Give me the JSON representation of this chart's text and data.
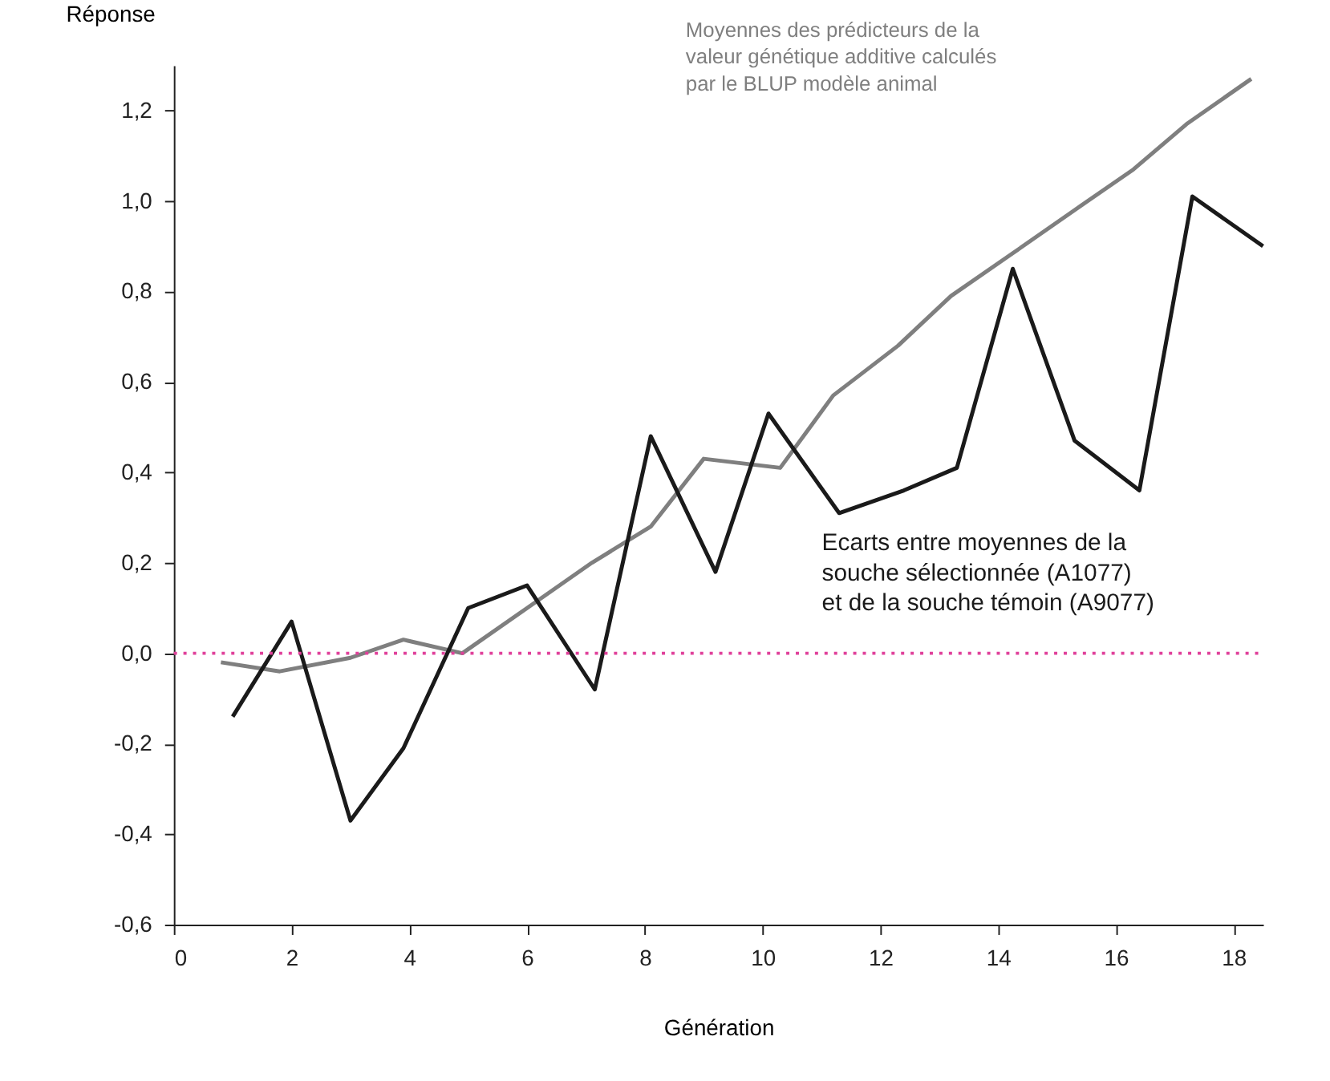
{
  "chart_data": {
    "type": "line",
    "xlabel": "Génération",
    "ylabel": "Réponse",
    "series": [
      {
        "name": "Moyennes des prédicteurs de la\nvaleur génétique additive calculés\npar le BLUP modèle animal",
        "color": "#7f7f7f",
        "x": [
          0.8,
          1.8,
          3.0,
          3.9,
          4.9,
          6.0,
          7.1,
          8.1,
          9.0,
          10.3,
          11.2,
          12.3,
          13.2,
          14.2,
          15.3,
          16.3,
          17.2,
          18.3
        ],
        "values": [
          -0.02,
          -0.04,
          -0.01,
          0.03,
          0.0,
          0.1,
          0.2,
          0.28,
          0.43,
          0.41,
          0.57,
          0.68,
          0.79,
          0.88,
          0.98,
          1.07,
          1.17,
          1.27
        ]
      },
      {
        "name": "Ecarts entre moyennes de la\nsouche sélectionnée (A1077)\net de la souche témoin (A9077)",
        "color": "#1a1a1a",
        "x": [
          1.0,
          2.0,
          3.0,
          3.9,
          5.0,
          6.0,
          7.15,
          8.1,
          9.2,
          10.1,
          11.3,
          12.4,
          13.3,
          14.25,
          15.3,
          16.4,
          17.3,
          18.5
        ],
        "values": [
          -0.14,
          0.07,
          -0.37,
          -0.21,
          0.1,
          0.15,
          -0.08,
          0.48,
          0.18,
          0.53,
          0.31,
          0.36,
          0.41,
          0.85,
          0.47,
          0.36,
          1.01,
          0.9
        ]
      }
    ],
    "xlim": [
      0,
      18.5
    ],
    "xticks": [
      0,
      2,
      4,
      6,
      8,
      10,
      12,
      14,
      16,
      18
    ],
    "ylim": [
      -0.6,
      1.3
    ],
    "yticks": [
      {
        "value": -0.6,
        "label": "-0,6"
      },
      {
        "value": -0.4,
        "label": "-0,4"
      },
      {
        "value": -0.2,
        "label": "-0,2"
      },
      {
        "value": 0.0,
        "label": "0,0"
      },
      {
        "value": 0.2,
        "label": "0,2"
      },
      {
        "value": 0.4,
        "label": "0,4"
      },
      {
        "value": 0.6,
        "label": "0,6"
      },
      {
        "value": 0.8,
        "label": "0,8"
      },
      {
        "value": 1.0,
        "label": "1,0"
      },
      {
        "value": 1.2,
        "label": "1,2"
      }
    ],
    "ref_lines": [
      {
        "axis": "y",
        "value": 0.0,
        "color": "#e0409a",
        "line_style": "dotted"
      }
    ],
    "grid": false,
    "marker": "none",
    "line_style": "solid"
  }
}
